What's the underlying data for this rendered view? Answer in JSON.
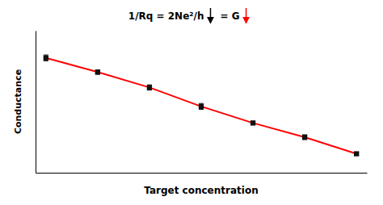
{
  "chart_data": {
    "type": "line",
    "xlabel": "Target concentration",
    "ylabel": "Conductance",
    "x": [
      0,
      1,
      2,
      3,
      4,
      5,
      6
    ],
    "series": [
      {
        "color": "#ff0000",
        "marker": "square",
        "values": [
          0.95,
          0.83,
          0.7,
          0.54,
          0.4,
          0.28,
          0.14
        ],
        "error": [
          0.025,
          0.018,
          0.022,
          0.025,
          0.015,
          0.02,
          0.012
        ]
      }
    ],
    "xlim": [
      -0.2,
      6.2
    ],
    "ylim": [
      -0.02,
      1.18
    ],
    "xticks": [],
    "yticks": [],
    "tick_labels": false,
    "annotations": [
      {
        "text": "1/Rq = 2Ne²/h"
      },
      {
        "text": "= G"
      }
    ]
  }
}
